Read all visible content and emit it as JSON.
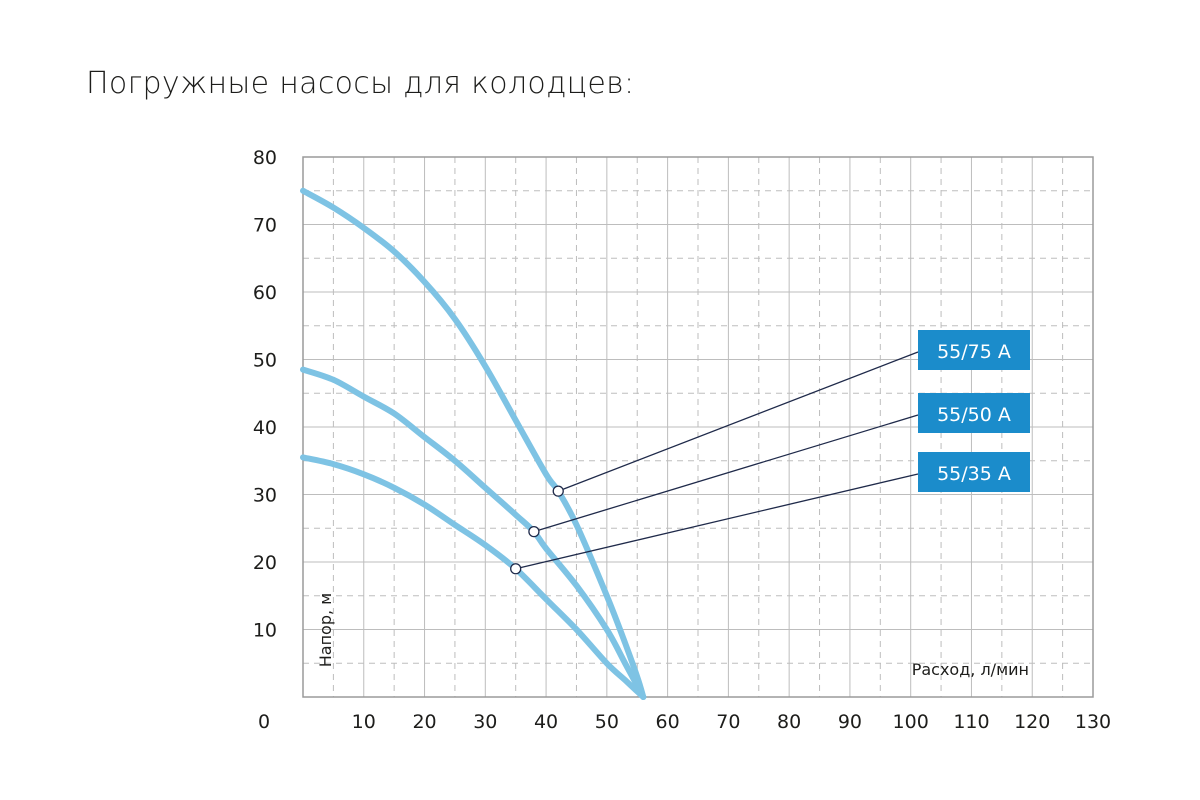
{
  "page": {
    "title": "Погружные насосы для колодцев:"
  },
  "colors": {
    "curve": "#7ec3e4",
    "badge": "#1b8ccb",
    "leader": "#1f2a4a",
    "grid": "#bdbdbd",
    "frame": "#9a9a9a"
  },
  "chart_data": {
    "type": "line",
    "title": "",
    "xlabel": "Расход, л/мин",
    "ylabel": "Напор, м",
    "xlim": [
      0,
      130
    ],
    "ylim": [
      0,
      80
    ],
    "x_ticks": [
      "0",
      "10",
      "20",
      "30",
      "40",
      "50",
      "60",
      "70",
      "80",
      "90",
      "100",
      "110",
      "120",
      "130"
    ],
    "y_ticks": [
      "10",
      "20",
      "30",
      "40",
      "50",
      "60",
      "70",
      "80"
    ],
    "grid": true,
    "series": [
      {
        "name": "55/75 A",
        "x": [
          0,
          5,
          10,
          15,
          20,
          25,
          30,
          35,
          40,
          42,
          45,
          50,
          53,
          55,
          56
        ],
        "y": [
          75,
          72.5,
          69.5,
          66,
          61.5,
          56,
          49,
          41,
          33,
          30.5,
          25.5,
          15,
          8,
          3,
          0
        ],
        "marker": {
          "x": 42,
          "y": 30.5
        }
      },
      {
        "name": "55/50 A",
        "x": [
          0,
          5,
          10,
          15,
          20,
          25,
          30,
          35,
          38,
          40,
          45,
          50,
          53,
          56
        ],
        "y": [
          48.5,
          47,
          44.5,
          42,
          38.5,
          35,
          31,
          27,
          24.5,
          22,
          16.5,
          10,
          5,
          0
        ],
        "marker": {
          "x": 38,
          "y": 24.5
        }
      },
      {
        "name": "55/35 A",
        "x": [
          0,
          5,
          10,
          15,
          20,
          25,
          30,
          35,
          40,
          45,
          50,
          53,
          56
        ],
        "y": [
          35.5,
          34.5,
          33,
          31,
          28.5,
          25.5,
          22.5,
          19,
          14.5,
          10,
          5,
          2.5,
          0
        ],
        "marker": {
          "x": 35,
          "y": 19
        }
      }
    ]
  }
}
